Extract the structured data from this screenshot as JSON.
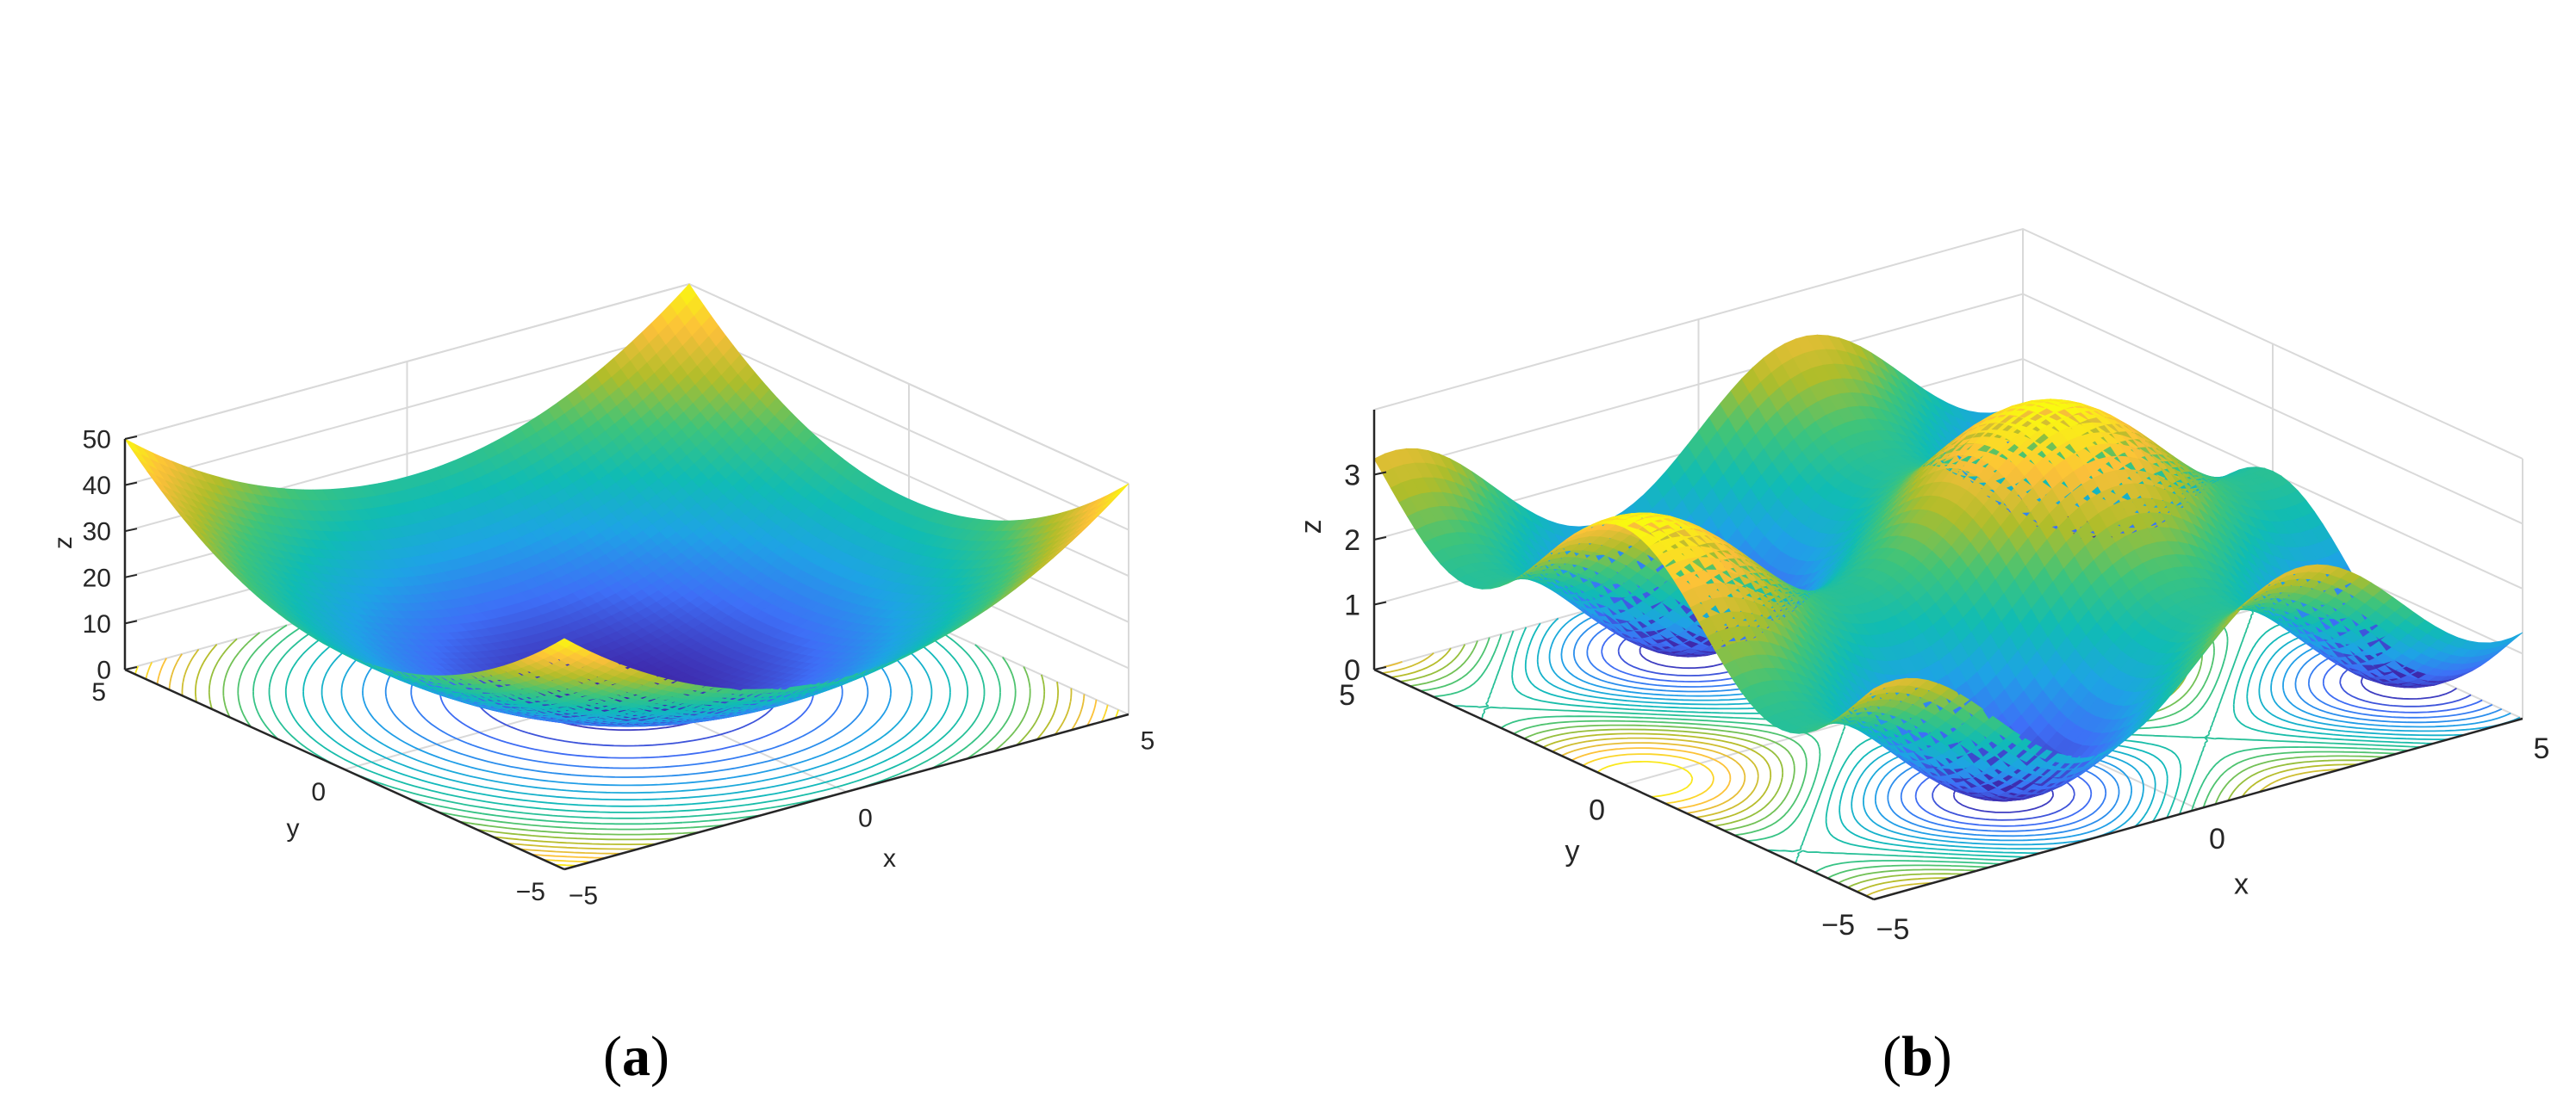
{
  "figure": {
    "panels": [
      {
        "id": "a",
        "caption_letter": "a"
      },
      {
        "id": "b",
        "caption_letter": "b"
      }
    ]
  },
  "colors": {
    "colormap": "parula",
    "parula_stops": [
      "#3e26a8",
      "#3e6ff7",
      "#1ea3e5",
      "#10bcb4",
      "#3fc47a",
      "#b0bd2a",
      "#fcbf3a",
      "#f9fb0e"
    ],
    "axes_line": "#262626",
    "grid": "#d9d9d9"
  },
  "chart_data": [
    {
      "type": "surface",
      "panel": "a",
      "function": "z = x^2 + y^2",
      "xlabel": "x",
      "ylabel": "y",
      "zlabel": "z",
      "xlim": [
        -5,
        5
      ],
      "ylim": [
        -5,
        5
      ],
      "zlim": [
        0,
        50
      ],
      "xticks": [
        "−5",
        "0",
        "5"
      ],
      "yticks": [
        "−5",
        "0",
        "5"
      ],
      "zticks": [
        "0",
        "10",
        "20",
        "30",
        "40",
        "50"
      ],
      "contour_projection": true,
      "grid": true,
      "view": "default 3-D (az -37.5, el 30)"
    },
    {
      "type": "surface",
      "panel": "b",
      "function": "z = sin(x) + cos(y) + 2",
      "xlabel": "x",
      "ylabel": "y",
      "zlabel": "z",
      "xlim": [
        -5,
        5
      ],
      "ylim": [
        -5,
        5
      ],
      "zlim": [
        0,
        4
      ],
      "xticks": [
        "−5",
        "0",
        "5"
      ],
      "yticks": [
        "−5",
        "0",
        "5"
      ],
      "zticks": [
        "0",
        "1",
        "2",
        "3"
      ],
      "contour_projection": true,
      "grid": true,
      "view": "default 3-D (az -37.5, el 30)"
    }
  ]
}
